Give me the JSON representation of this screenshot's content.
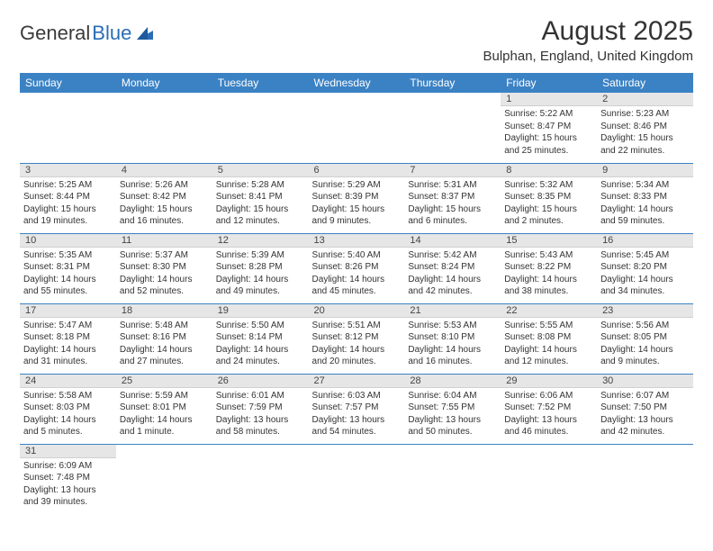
{
  "logo": {
    "text1": "General",
    "text2": "Blue"
  },
  "title": {
    "month": "August 2025",
    "location": "Bulphan, England, United Kingdom"
  },
  "colors": {
    "header_bg": "#3b82c4",
    "header_fg": "#ffffff",
    "daynum_bg": "#e6e6e6",
    "border": "#3b82c4",
    "text": "#333333"
  },
  "weekdays": [
    "Sunday",
    "Monday",
    "Tuesday",
    "Wednesday",
    "Thursday",
    "Friday",
    "Saturday"
  ],
  "weeks": [
    [
      null,
      null,
      null,
      null,
      null,
      {
        "day": "1",
        "sunrise": "Sunrise: 5:22 AM",
        "sunset": "Sunset: 8:47 PM",
        "daylight": "Daylight: 15 hours and 25 minutes."
      },
      {
        "day": "2",
        "sunrise": "Sunrise: 5:23 AM",
        "sunset": "Sunset: 8:46 PM",
        "daylight": "Daylight: 15 hours and 22 minutes."
      }
    ],
    [
      {
        "day": "3",
        "sunrise": "Sunrise: 5:25 AM",
        "sunset": "Sunset: 8:44 PM",
        "daylight": "Daylight: 15 hours and 19 minutes."
      },
      {
        "day": "4",
        "sunrise": "Sunrise: 5:26 AM",
        "sunset": "Sunset: 8:42 PM",
        "daylight": "Daylight: 15 hours and 16 minutes."
      },
      {
        "day": "5",
        "sunrise": "Sunrise: 5:28 AM",
        "sunset": "Sunset: 8:41 PM",
        "daylight": "Daylight: 15 hours and 12 minutes."
      },
      {
        "day": "6",
        "sunrise": "Sunrise: 5:29 AM",
        "sunset": "Sunset: 8:39 PM",
        "daylight": "Daylight: 15 hours and 9 minutes."
      },
      {
        "day": "7",
        "sunrise": "Sunrise: 5:31 AM",
        "sunset": "Sunset: 8:37 PM",
        "daylight": "Daylight: 15 hours and 6 minutes."
      },
      {
        "day": "8",
        "sunrise": "Sunrise: 5:32 AM",
        "sunset": "Sunset: 8:35 PM",
        "daylight": "Daylight: 15 hours and 2 minutes."
      },
      {
        "day": "9",
        "sunrise": "Sunrise: 5:34 AM",
        "sunset": "Sunset: 8:33 PM",
        "daylight": "Daylight: 14 hours and 59 minutes."
      }
    ],
    [
      {
        "day": "10",
        "sunrise": "Sunrise: 5:35 AM",
        "sunset": "Sunset: 8:31 PM",
        "daylight": "Daylight: 14 hours and 55 minutes."
      },
      {
        "day": "11",
        "sunrise": "Sunrise: 5:37 AM",
        "sunset": "Sunset: 8:30 PM",
        "daylight": "Daylight: 14 hours and 52 minutes."
      },
      {
        "day": "12",
        "sunrise": "Sunrise: 5:39 AM",
        "sunset": "Sunset: 8:28 PM",
        "daylight": "Daylight: 14 hours and 49 minutes."
      },
      {
        "day": "13",
        "sunrise": "Sunrise: 5:40 AM",
        "sunset": "Sunset: 8:26 PM",
        "daylight": "Daylight: 14 hours and 45 minutes."
      },
      {
        "day": "14",
        "sunrise": "Sunrise: 5:42 AM",
        "sunset": "Sunset: 8:24 PM",
        "daylight": "Daylight: 14 hours and 42 minutes."
      },
      {
        "day": "15",
        "sunrise": "Sunrise: 5:43 AM",
        "sunset": "Sunset: 8:22 PM",
        "daylight": "Daylight: 14 hours and 38 minutes."
      },
      {
        "day": "16",
        "sunrise": "Sunrise: 5:45 AM",
        "sunset": "Sunset: 8:20 PM",
        "daylight": "Daylight: 14 hours and 34 minutes."
      }
    ],
    [
      {
        "day": "17",
        "sunrise": "Sunrise: 5:47 AM",
        "sunset": "Sunset: 8:18 PM",
        "daylight": "Daylight: 14 hours and 31 minutes."
      },
      {
        "day": "18",
        "sunrise": "Sunrise: 5:48 AM",
        "sunset": "Sunset: 8:16 PM",
        "daylight": "Daylight: 14 hours and 27 minutes."
      },
      {
        "day": "19",
        "sunrise": "Sunrise: 5:50 AM",
        "sunset": "Sunset: 8:14 PM",
        "daylight": "Daylight: 14 hours and 24 minutes."
      },
      {
        "day": "20",
        "sunrise": "Sunrise: 5:51 AM",
        "sunset": "Sunset: 8:12 PM",
        "daylight": "Daylight: 14 hours and 20 minutes."
      },
      {
        "day": "21",
        "sunrise": "Sunrise: 5:53 AM",
        "sunset": "Sunset: 8:10 PM",
        "daylight": "Daylight: 14 hours and 16 minutes."
      },
      {
        "day": "22",
        "sunrise": "Sunrise: 5:55 AM",
        "sunset": "Sunset: 8:08 PM",
        "daylight": "Daylight: 14 hours and 12 minutes."
      },
      {
        "day": "23",
        "sunrise": "Sunrise: 5:56 AM",
        "sunset": "Sunset: 8:05 PM",
        "daylight": "Daylight: 14 hours and 9 minutes."
      }
    ],
    [
      {
        "day": "24",
        "sunrise": "Sunrise: 5:58 AM",
        "sunset": "Sunset: 8:03 PM",
        "daylight": "Daylight: 14 hours and 5 minutes."
      },
      {
        "day": "25",
        "sunrise": "Sunrise: 5:59 AM",
        "sunset": "Sunset: 8:01 PM",
        "daylight": "Daylight: 14 hours and 1 minute."
      },
      {
        "day": "26",
        "sunrise": "Sunrise: 6:01 AM",
        "sunset": "Sunset: 7:59 PM",
        "daylight": "Daylight: 13 hours and 58 minutes."
      },
      {
        "day": "27",
        "sunrise": "Sunrise: 6:03 AM",
        "sunset": "Sunset: 7:57 PM",
        "daylight": "Daylight: 13 hours and 54 minutes."
      },
      {
        "day": "28",
        "sunrise": "Sunrise: 6:04 AM",
        "sunset": "Sunset: 7:55 PM",
        "daylight": "Daylight: 13 hours and 50 minutes."
      },
      {
        "day": "29",
        "sunrise": "Sunrise: 6:06 AM",
        "sunset": "Sunset: 7:52 PM",
        "daylight": "Daylight: 13 hours and 46 minutes."
      },
      {
        "day": "30",
        "sunrise": "Sunrise: 6:07 AM",
        "sunset": "Sunset: 7:50 PM",
        "daylight": "Daylight: 13 hours and 42 minutes."
      }
    ],
    [
      {
        "day": "31",
        "sunrise": "Sunrise: 6:09 AM",
        "sunset": "Sunset: 7:48 PM",
        "daylight": "Daylight: 13 hours and 39 minutes."
      },
      null,
      null,
      null,
      null,
      null,
      null
    ]
  ]
}
